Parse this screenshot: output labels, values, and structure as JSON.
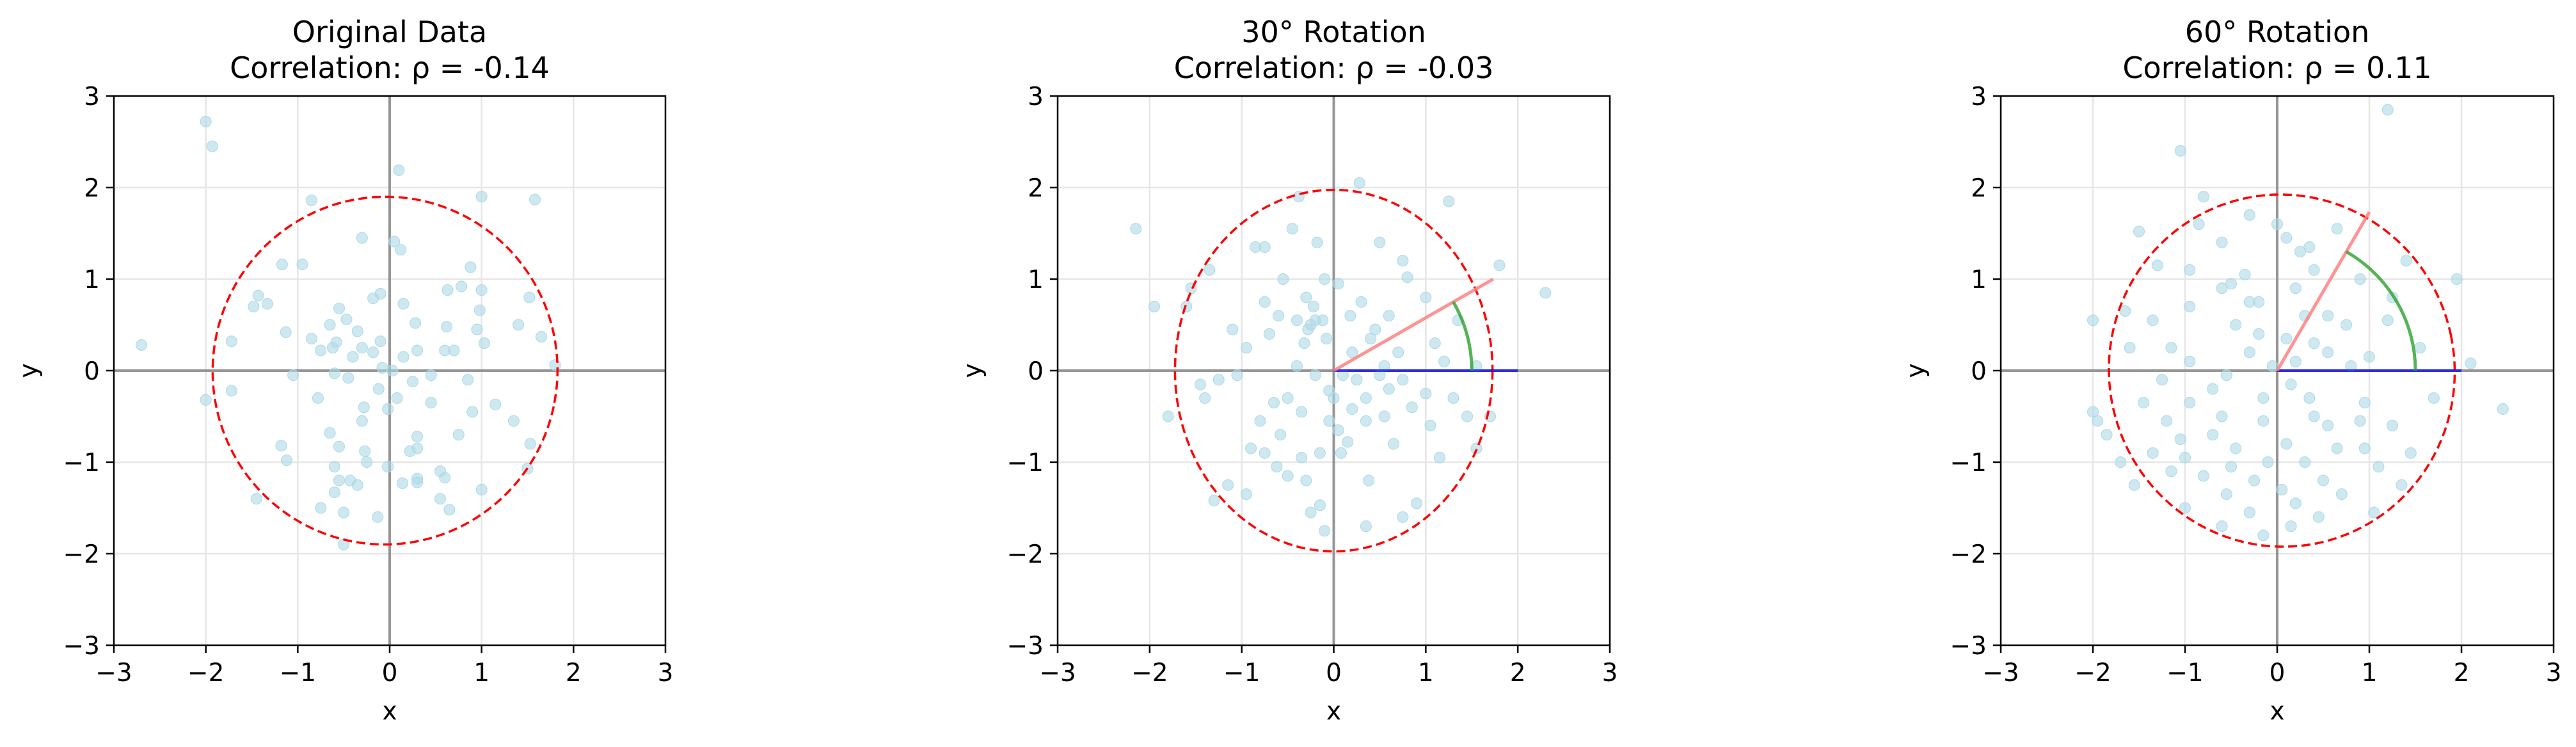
{
  "chart_data": [
    {
      "type": "scatter",
      "title": "Original Data",
      "subtitle": "Correlation: ρ = -0.14",
      "xlabel": "x",
      "ylabel": "y",
      "xlim": [
        -3,
        3
      ],
      "ylim": [
        -3,
        3
      ],
      "xticks": [
        "−3",
        "−2",
        "−1",
        "0",
        "1",
        "2",
        "3"
      ],
      "yticks": [
        "−3",
        "−2",
        "−1",
        "0",
        "1",
        "2",
        "3"
      ],
      "grid": true,
      "points": [
        [
          -2.0,
          2.72
        ],
        [
          -1.93,
          2.45
        ],
        [
          0.1,
          2.19
        ],
        [
          -0.85,
          1.86
        ],
        [
          1.0,
          1.9
        ],
        [
          1.58,
          1.87
        ],
        [
          -1.17,
          1.16
        ],
        [
          -0.95,
          1.16
        ],
        [
          -0.3,
          1.45
        ],
        [
          0.05,
          1.41
        ],
        [
          0.12,
          1.32
        ],
        [
          0.88,
          1.13
        ],
        [
          1.0,
          0.88
        ],
        [
          0.78,
          0.92
        ],
        [
          -1.33,
          0.73
        ],
        [
          -1.48,
          0.7
        ],
        [
          -1.43,
          0.82
        ],
        [
          -0.1,
          0.84
        ],
        [
          0.15,
          0.73
        ],
        [
          -0.55,
          0.68
        ],
        [
          -0.18,
          0.79
        ],
        [
          0.63,
          0.88
        ],
        [
          -0.47,
          0.56
        ],
        [
          1.52,
          0.8
        ],
        [
          -0.65,
          0.5
        ],
        [
          -0.35,
          0.43
        ],
        [
          0.28,
          0.52
        ],
        [
          0.98,
          0.66
        ],
        [
          -1.13,
          0.42
        ],
        [
          -0.85,
          0.35
        ],
        [
          -0.58,
          0.31
        ],
        [
          1.65,
          0.37
        ],
        [
          1.4,
          0.5
        ],
        [
          -2.7,
          0.28
        ],
        [
          -1.72,
          0.32
        ],
        [
          -0.1,
          0.32
        ],
        [
          -0.3,
          0.25
        ],
        [
          -0.62,
          0.25
        ],
        [
          -0.75,
          0.22
        ],
        [
          0.3,
          0.22
        ],
        [
          0.6,
          0.22
        ],
        [
          0.7,
          0.22
        ],
        [
          1.03,
          0.3
        ],
        [
          0.95,
          0.45
        ],
        [
          0.62,
          0.48
        ],
        [
          -0.4,
          0.15
        ],
        [
          -0.18,
          0.2
        ],
        [
          0.15,
          0.15
        ],
        [
          -0.08,
          0.03
        ],
        [
          0.03,
          0.0
        ],
        [
          1.8,
          0.06
        ],
        [
          -1.05,
          -0.05
        ],
        [
          -0.6,
          -0.03
        ],
        [
          -0.45,
          -0.08
        ],
        [
          0.45,
          -0.05
        ],
        [
          0.85,
          -0.1
        ],
        [
          -0.12,
          -0.2
        ],
        [
          0.25,
          -0.12
        ],
        [
          -1.72,
          -0.22
        ],
        [
          -2.0,
          -0.32
        ],
        [
          -0.78,
          -0.3
        ],
        [
          0.08,
          -0.3
        ],
        [
          -0.02,
          -0.42
        ],
        [
          -0.28,
          -0.4
        ],
        [
          0.45,
          -0.35
        ],
        [
          1.15,
          -0.37
        ],
        [
          -0.3,
          -0.55
        ],
        [
          0.9,
          -0.45
        ],
        [
          1.35,
          -0.55
        ],
        [
          0.3,
          -0.72
        ],
        [
          -0.65,
          -0.68
        ],
        [
          -0.55,
          -0.83
        ],
        [
          -1.18,
          -0.82
        ],
        [
          -1.12,
          -0.98
        ],
        [
          -0.27,
          -0.88
        ],
        [
          0.75,
          -0.7
        ],
        [
          0.3,
          -0.85
        ],
        [
          0.22,
          -0.88
        ],
        [
          1.53,
          -0.8
        ],
        [
          1.5,
          -1.07
        ],
        [
          -0.6,
          -1.05
        ],
        [
          -0.25,
          -1.0
        ],
        [
          -0.02,
          -1.05
        ],
        [
          0.55,
          -1.1
        ],
        [
          0.6,
          -1.17
        ],
        [
          1.0,
          -1.3
        ],
        [
          0.3,
          -1.18
        ],
        [
          0.3,
          -1.22
        ],
        [
          -1.45,
          -1.4
        ],
        [
          -0.55,
          -1.2
        ],
        [
          -0.43,
          -1.2
        ],
        [
          -0.6,
          -1.33
        ],
        [
          -0.5,
          -1.55
        ],
        [
          -0.13,
          -1.6
        ],
        [
          0.55,
          -1.4
        ],
        [
          0.65,
          -1.52
        ],
        [
          -0.5,
          -1.9
        ],
        [
          0.14,
          -1.23
        ],
        [
          -0.75,
          -1.5
        ],
        [
          -0.35,
          -1.25
        ]
      ],
      "ellipse": {
        "center": [
          -0.05,
          0.0
        ],
        "width": 3.75,
        "height": 3.8,
        "tilt_deg": -12
      },
      "colors": {
        "points": "#add8e6",
        "ellipse": "#ff0000",
        "axes": "#808080"
      }
    },
    {
      "type": "scatter",
      "title": "30° Rotation",
      "subtitle": "Correlation: ρ = -0.03",
      "xlabel": "x",
      "ylabel": "y",
      "xlim": [
        -3,
        3
      ],
      "ylim": [
        -3,
        3
      ],
      "xticks": [
        "−3",
        "−2",
        "−1",
        "0",
        "1",
        "2",
        "3"
      ],
      "yticks": [
        "−3",
        "−2",
        "−1",
        "0",
        "1",
        "2",
        "3"
      ],
      "grid": true,
      "points": [
        [
          -2.15,
          1.55
        ],
        [
          -1.95,
          0.7
        ],
        [
          -1.8,
          -0.5
        ],
        [
          -1.6,
          0.7
        ],
        [
          -1.45,
          -0.15
        ],
        [
          -1.4,
          -0.3
        ],
        [
          -1.35,
          1.1
        ],
        [
          -1.3,
          -1.42
        ],
        [
          -1.15,
          -1.25
        ],
        [
          -1.05,
          -0.05
        ],
        [
          -0.95,
          0.25
        ],
        [
          -0.9,
          -0.85
        ],
        [
          -0.85,
          1.35
        ],
        [
          -0.75,
          1.35
        ],
        [
          -0.75,
          0.75
        ],
        [
          -0.75,
          -0.9
        ],
        [
          -0.7,
          0.4
        ],
        [
          -0.6,
          0.6
        ],
        [
          -0.58,
          -0.7
        ],
        [
          -0.55,
          1.0
        ],
        [
          -0.5,
          -0.3
        ],
        [
          -0.5,
          -1.15
        ],
        [
          -0.45,
          1.55
        ],
        [
          -0.4,
          0.55
        ],
        [
          -0.38,
          1.9
        ],
        [
          -0.35,
          -0.95
        ],
        [
          -0.32,
          0.3
        ],
        [
          -0.3,
          0.8
        ],
        [
          -0.3,
          -1.2
        ],
        [
          -0.28,
          0.45
        ],
        [
          -0.25,
          0.5
        ],
        [
          -0.25,
          -1.55
        ],
        [
          -0.22,
          0.7
        ],
        [
          -0.2,
          0.55
        ],
        [
          -0.2,
          -0.05
        ],
        [
          -0.18,
          1.4
        ],
        [
          -0.15,
          -0.9
        ],
        [
          -0.15,
          -1.47
        ],
        [
          -0.12,
          0.55
        ],
        [
          -0.1,
          1.0
        ],
        [
          -0.08,
          0.35
        ],
        [
          -0.05,
          -0.22
        ],
        [
          -0.05,
          -0.55
        ],
        [
          0.0,
          -0.3
        ],
        [
          0.05,
          -0.65
        ],
        [
          0.08,
          -0.9
        ],
        [
          0.1,
          -0.05
        ],
        [
          0.15,
          -0.78
        ],
        [
          0.18,
          0.6
        ],
        [
          0.2,
          -0.42
        ],
        [
          0.25,
          -0.1
        ],
        [
          0.28,
          2.05
        ],
        [
          0.3,
          0.75
        ],
        [
          0.35,
          -0.3
        ],
        [
          0.35,
          -0.55
        ],
        [
          0.38,
          -1.2
        ],
        [
          0.4,
          0.35
        ],
        [
          0.45,
          0.45
        ],
        [
          0.5,
          1.4
        ],
        [
          0.5,
          -0.05
        ],
        [
          0.55,
          -0.5
        ],
        [
          0.6,
          -0.2
        ],
        [
          0.65,
          -0.8
        ],
        [
          0.7,
          0.2
        ],
        [
          0.75,
          -0.1
        ],
        [
          0.75,
          1.2
        ],
        [
          0.8,
          1.02
        ],
        [
          0.85,
          -0.4
        ],
        [
          0.9,
          -1.45
        ],
        [
          1.0,
          -0.25
        ],
        [
          1.05,
          -0.6
        ],
        [
          1.1,
          0.3
        ],
        [
          1.2,
          0.1
        ],
        [
          1.25,
          1.85
        ],
        [
          1.3,
          -0.3
        ],
        [
          1.45,
          -0.5
        ],
        [
          1.55,
          -0.85
        ],
        [
          1.7,
          -0.5
        ],
        [
          1.8,
          1.15
        ],
        [
          1.55,
          0.05
        ],
        [
          2.3,
          0.85
        ],
        [
          -1.25,
          -0.1
        ],
        [
          -0.95,
          -1.35
        ],
        [
          -0.62,
          -1.05
        ],
        [
          0.2,
          0.2
        ],
        [
          -0.4,
          0.05
        ],
        [
          0.6,
          0.6
        ],
        [
          -1.1,
          0.45
        ],
        [
          1.0,
          0.8
        ],
        [
          -0.1,
          -1.75
        ],
        [
          0.35,
          -1.7
        ],
        [
          0.75,
          -1.6
        ],
        [
          -0.65,
          -0.35
        ],
        [
          -0.8,
          -0.55
        ],
        [
          0.05,
          0.95
        ],
        [
          -1.55,
          0.9
        ],
        [
          1.35,
          0.55
        ],
        [
          0.55,
          0.05
        ],
        [
          -0.35,
          -0.45
        ],
        [
          1.15,
          -0.95
        ]
      ],
      "ellipse": {
        "center": [
          0.0,
          0.0
        ],
        "width": 3.45,
        "height": 3.95,
        "tilt_deg": 0
      },
      "rotation": {
        "angle_deg": 30,
        "line_length": 2.0,
        "arc_radius": 1.5
      },
      "colors": {
        "points": "#add8e6",
        "ellipse": "#ff0000",
        "axes": "#808080",
        "rotated_line": "#ff8080",
        "base_line": "#0000ff",
        "arc": "#2ca02c"
      }
    },
    {
      "type": "scatter",
      "title": "60° Rotation",
      "subtitle": "Correlation: ρ = 0.11",
      "xlabel": "x",
      "ylabel": "y",
      "xlim": [
        -3,
        3
      ],
      "ylim": [
        -3,
        3
      ],
      "xticks": [
        "−3",
        "−2",
        "−1",
        "0",
        "1",
        "2",
        "3"
      ],
      "yticks": [
        "−3",
        "−2",
        "−1",
        "0",
        "1",
        "2",
        "3"
      ],
      "grid": true,
      "points": [
        [
          1.2,
          2.85
        ],
        [
          -1.05,
          2.4
        ],
        [
          -0.3,
          1.7
        ],
        [
          -0.85,
          1.6
        ],
        [
          -1.5,
          1.52
        ],
        [
          0.0,
          1.6
        ],
        [
          0.65,
          1.55
        ],
        [
          0.1,
          1.45
        ],
        [
          -0.6,
          1.4
        ],
        [
          0.35,
          1.35
        ],
        [
          -1.3,
          1.15
        ],
        [
          -0.95,
          1.1
        ],
        [
          0.4,
          1.1
        ],
        [
          -0.6,
          0.9
        ],
        [
          0.2,
          0.9
        ],
        [
          1.4,
          1.2
        ],
        [
          1.25,
          0.8
        ],
        [
          -0.3,
          0.75
        ],
        [
          -1.65,
          0.65
        ],
        [
          -0.95,
          0.7
        ],
        [
          0.3,
          0.6
        ],
        [
          0.55,
          0.6
        ],
        [
          1.2,
          0.55
        ],
        [
          1.95,
          1.0
        ],
        [
          -2.0,
          0.55
        ],
        [
          -0.45,
          0.5
        ],
        [
          -0.2,
          0.4
        ],
        [
          0.1,
          0.35
        ],
        [
          0.4,
          0.3
        ],
        [
          0.75,
          0.5
        ],
        [
          -1.15,
          0.25
        ],
        [
          -0.3,
          0.2
        ],
        [
          -0.05,
          0.05
        ],
        [
          0.2,
          0.1
        ],
        [
          1.0,
          0.15
        ],
        [
          2.1,
          0.08
        ],
        [
          -1.25,
          -0.1
        ],
        [
          -0.55,
          -0.05
        ],
        [
          0.15,
          -0.15
        ],
        [
          0.35,
          -0.3
        ],
        [
          -1.45,
          -0.35
        ],
        [
          -0.95,
          -0.35
        ],
        [
          -0.7,
          -0.2
        ],
        [
          -0.15,
          -0.3
        ],
        [
          0.4,
          -0.5
        ],
        [
          0.95,
          -0.35
        ],
        [
          2.45,
          -0.42
        ],
        [
          -1.95,
          -0.55
        ],
        [
          -1.2,
          -0.55
        ],
        [
          -0.6,
          -0.5
        ],
        [
          -0.15,
          -0.55
        ],
        [
          0.55,
          -0.6
        ],
        [
          0.9,
          -0.55
        ],
        [
          -1.85,
          -0.7
        ],
        [
          -1.05,
          -0.75
        ],
        [
          -0.45,
          -0.85
        ],
        [
          0.1,
          -0.8
        ],
        [
          0.95,
          -0.85
        ],
        [
          1.45,
          -0.9
        ],
        [
          -1.0,
          -0.95
        ],
        [
          -0.5,
          -1.05
        ],
        [
          0.3,
          -1.0
        ],
        [
          1.1,
          -1.05
        ],
        [
          -1.55,
          -1.25
        ],
        [
          -0.8,
          -1.15
        ],
        [
          0.05,
          -1.3
        ],
        [
          0.5,
          -1.2
        ],
        [
          1.35,
          -1.25
        ],
        [
          -1.0,
          -1.5
        ],
        [
          -0.3,
          -1.55
        ],
        [
          0.2,
          -1.45
        ],
        [
          1.05,
          -1.55
        ],
        [
          -0.6,
          -1.7
        ],
        [
          -0.15,
          -1.8
        ],
        [
          0.15,
          -1.7
        ],
        [
          0.7,
          -1.35
        ],
        [
          -1.35,
          -0.9
        ],
        [
          -0.7,
          -0.7
        ],
        [
          0.65,
          -0.85
        ],
        [
          -0.25,
          -1.2
        ],
        [
          -1.6,
          0.25
        ],
        [
          -0.35,
          1.05
        ],
        [
          0.9,
          1.0
        ],
        [
          -0.95,
          0.1
        ],
        [
          0.55,
          0.2
        ],
        [
          1.7,
          -0.3
        ],
        [
          -0.5,
          0.95
        ],
        [
          -2.0,
          -0.45
        ],
        [
          -1.35,
          0.55
        ],
        [
          1.25,
          -0.6
        ],
        [
          0.25,
          1.3
        ],
        [
          -0.8,
          1.9
        ],
        [
          0.8,
          0.05
        ],
        [
          -0.1,
          -1.0
        ],
        [
          -1.15,
          -1.1
        ],
        [
          -0.55,
          -1.35
        ],
        [
          0.45,
          -1.6
        ],
        [
          1.55,
          0.25
        ],
        [
          -1.7,
          -1.0
        ],
        [
          -0.2,
          0.75
        ]
      ],
      "ellipse": {
        "center": [
          0.05,
          0.0
        ],
        "width": 3.75,
        "height": 3.85,
        "tilt_deg": 12
      },
      "rotation": {
        "angle_deg": 60,
        "line_length": 2.0,
        "arc_radius": 1.5
      },
      "colors": {
        "points": "#add8e6",
        "ellipse": "#ff0000",
        "axes": "#808080",
        "rotated_line": "#ff8080",
        "base_line": "#0000ff",
        "arc": "#2ca02c"
      }
    }
  ]
}
